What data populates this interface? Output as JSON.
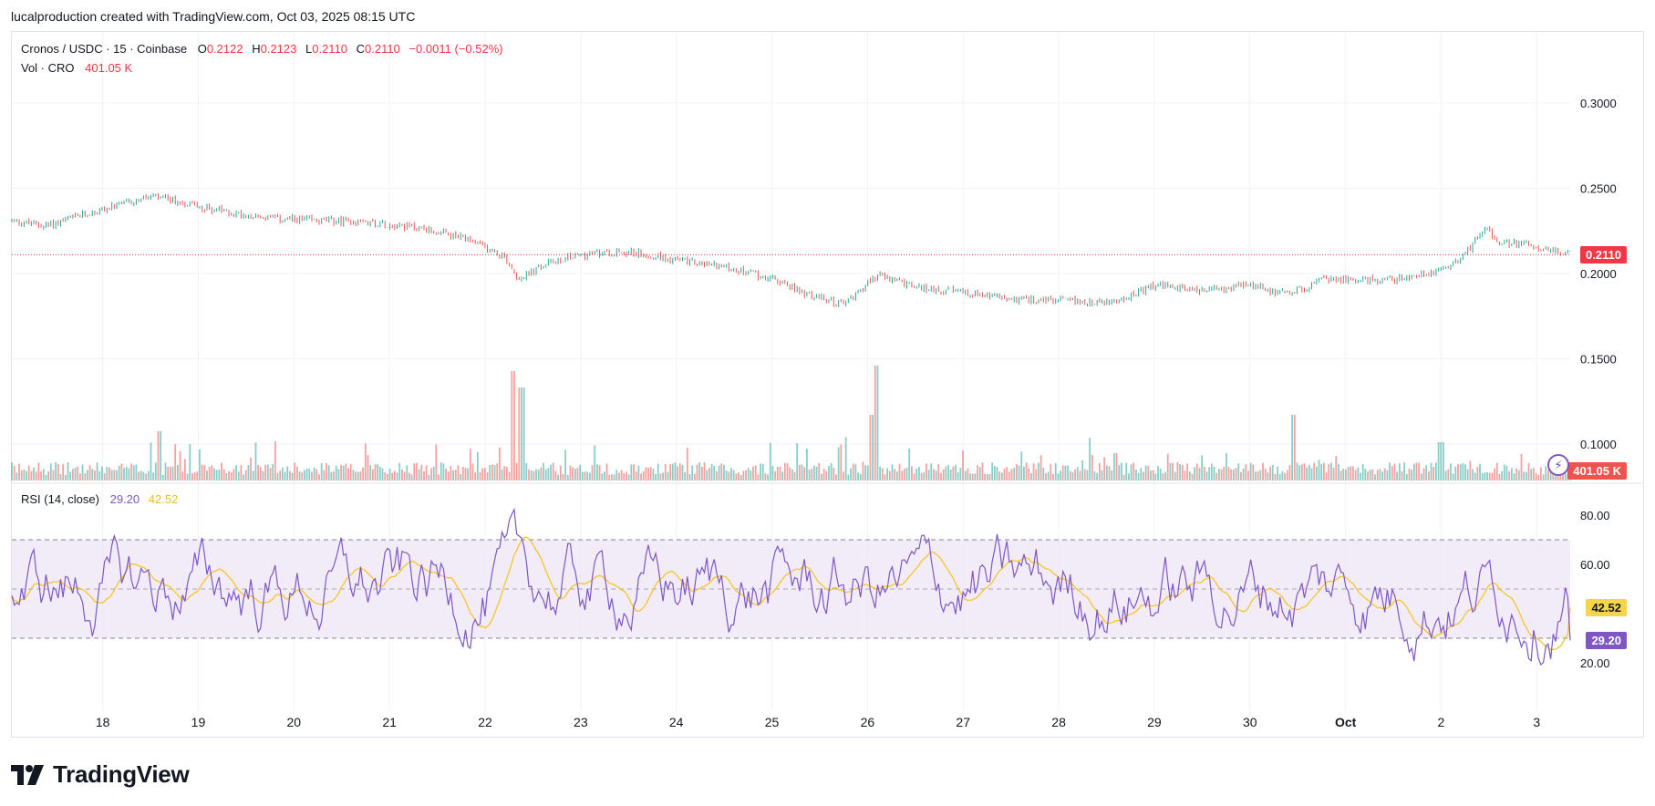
{
  "header": {
    "caption": "lucalproduction created with TradingView.com, Oct 03, 2025 08:15 UTC"
  },
  "legend": {
    "symbol": "Cronos / USDC · 15 · Coinbase",
    "o_label": "O",
    "o_value": "0.2122",
    "h_label": "H",
    "h_value": "0.2123",
    "l_label": "L",
    "l_value": "0.2110",
    "c_label": "C",
    "c_value": "0.2110",
    "change": "−0.0011 (−0.52%)",
    "vol_label": "Vol · CRO",
    "vol_value": "401.05 K"
  },
  "rsi_legend": {
    "label": "RSI (14, close)",
    "rsi_value": "29.20",
    "ma_value": "42.52"
  },
  "tags": {
    "price": "0.2110",
    "volume": "401.05 K",
    "rsi_ma": "42.52",
    "rsi": "29.20"
  },
  "logo": {
    "text": "TradingView",
    "icon": "tradingview-logo-icon"
  },
  "colors": {
    "up": "#26a69a",
    "down": "#ef5350",
    "rsi": "#7e57c2",
    "rsi_ma": "#f7c52a",
    "band": "#ede7f6",
    "price_line": "#f23645"
  },
  "chart_data": [
    {
      "type": "candlestick",
      "title": "Cronos / USDC · 15 · Coinbase",
      "y_ticks": [
        "0.3000",
        "0.2500",
        "0.2000",
        "0.1500",
        "0.1000"
      ],
      "ylim": [
        0.085,
        0.335
      ],
      "x_ticks": [
        "18",
        "19",
        "20",
        "21",
        "22",
        "23",
        "24",
        "25",
        "26",
        "27",
        "28",
        "29",
        "30",
        "Oct",
        "2",
        "3"
      ],
      "x_tick_days": [
        18,
        19,
        20,
        21,
        22,
        23,
        24,
        25,
        26,
        27,
        28,
        29,
        30,
        31,
        32,
        33
      ],
      "xlim_days": [
        17.05,
        33.35
      ],
      "last_price": 0.211,
      "price_anchors": {
        "day": [
          17.05,
          17.4,
          17.9,
          18.5,
          18.8,
          19.3,
          19.8,
          20.3,
          20.8,
          21.3,
          21.8,
          22.2,
          22.35,
          22.7,
          23.0,
          23.5,
          24.0,
          24.5,
          25.0,
          25.4,
          25.75,
          26.1,
          26.5,
          27.0,
          27.5,
          28.0,
          28.6,
          29.0,
          29.5,
          30.0,
          30.4,
          30.8,
          31.2,
          31.6,
          31.9,
          32.1,
          32.3,
          32.45,
          32.6,
          32.9,
          33.1,
          33.35
        ],
        "price": [
          0.231,
          0.228,
          0.236,
          0.245,
          0.242,
          0.236,
          0.232,
          0.231,
          0.23,
          0.227,
          0.22,
          0.21,
          0.197,
          0.207,
          0.211,
          0.213,
          0.208,
          0.204,
          0.197,
          0.187,
          0.182,
          0.199,
          0.192,
          0.189,
          0.185,
          0.184,
          0.183,
          0.193,
          0.19,
          0.193,
          0.188,
          0.197,
          0.196,
          0.197,
          0.201,
          0.205,
          0.215,
          0.228,
          0.217,
          0.218,
          0.214,
          0.211
        ]
      },
      "volume_series": {
        "name": "Vol · CRO",
        "last": "401.05 K",
        "spikes": [
          {
            "day": 22.3,
            "height": 1.0
          },
          {
            "day": 22.38,
            "height": 0.85
          },
          {
            "day": 26.1,
            "height": 1.05
          },
          {
            "day": 26.05,
            "height": 0.6
          },
          {
            "day": 18.6,
            "height": 0.45
          },
          {
            "day": 30.45,
            "height": 0.6
          },
          {
            "day": 32.0,
            "height": 0.35
          },
          {
            "day": 28.6,
            "height": 0.25
          }
        ]
      }
    },
    {
      "type": "line",
      "title": "RSI (14, close)",
      "y_ticks": [
        "80.00",
        "60.00",
        "20.00"
      ],
      "ylim": [
        12,
        88
      ],
      "bands": [
        70,
        50,
        30
      ],
      "series": [
        {
          "name": "RSI",
          "last": 29.2
        },
        {
          "name": "RSI MA",
          "last": 42.52
        }
      ]
    }
  ]
}
